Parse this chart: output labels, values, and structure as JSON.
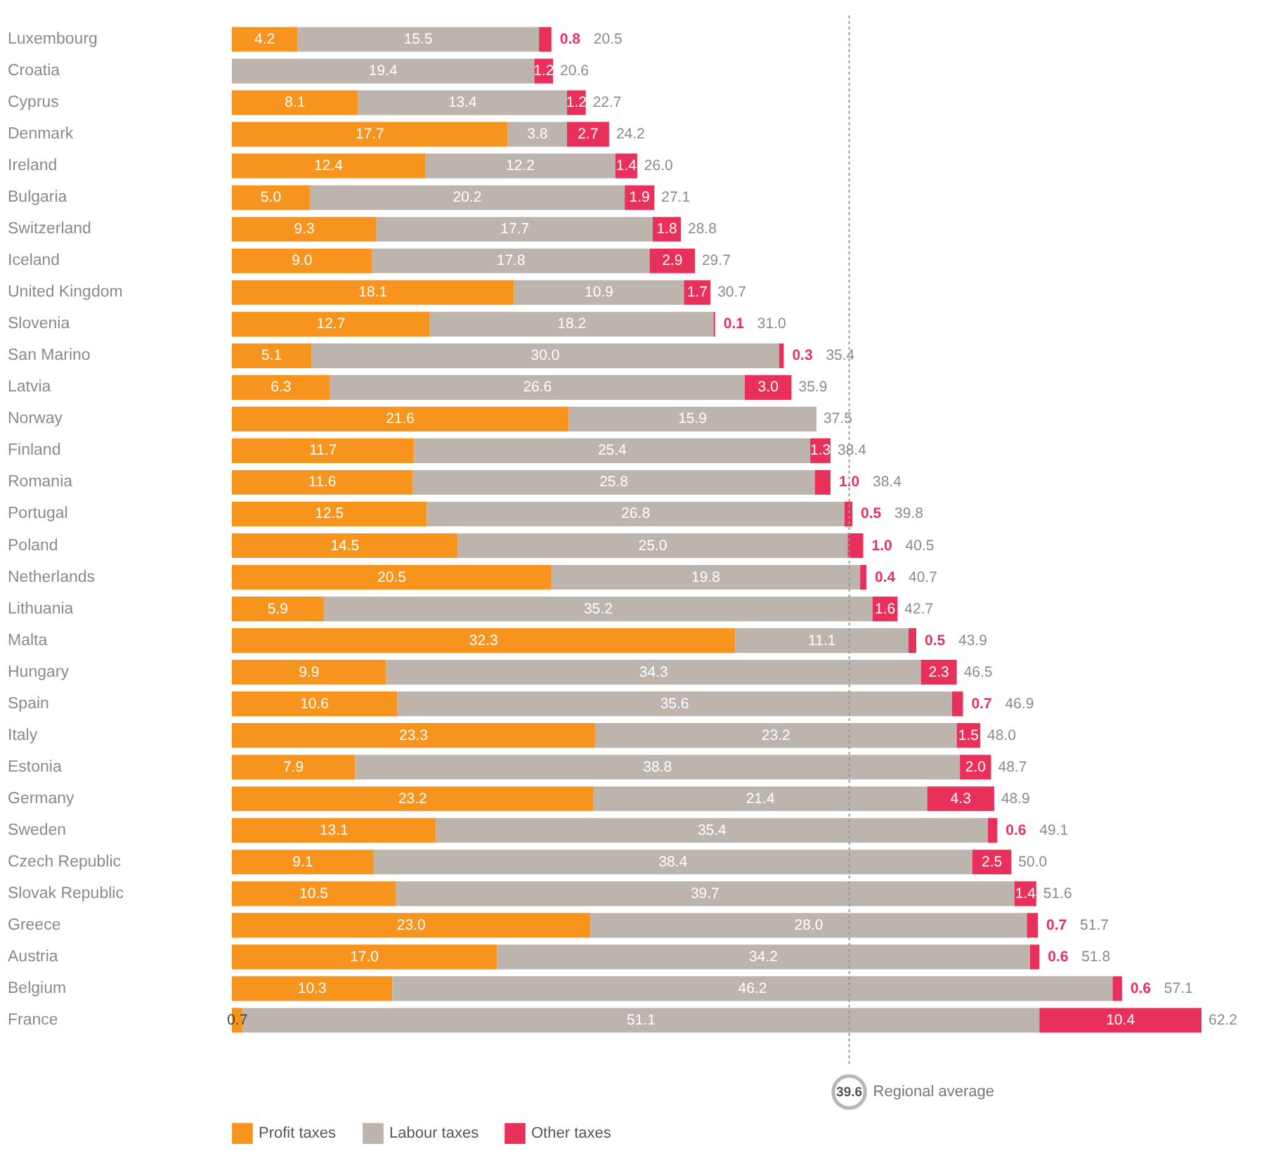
{
  "chart_data": {
    "type": "bar",
    "orientation": "horizontal",
    "stacked": true,
    "legend": "bottom left",
    "categories": [
      "Luxembourg",
      "Croatia",
      "Cyprus",
      "Denmark",
      "Ireland",
      "Bulgaria",
      "Switzerland",
      "Iceland",
      "United Kingdom",
      "Slovenia",
      "San Marino",
      "Latvia",
      "Norway",
      "Finland",
      "Romania",
      "Portugal",
      "Poland",
      "Netherlands",
      "Lithuania",
      "Malta",
      "Hungary",
      "Spain",
      "Italy",
      "Estonia",
      "Germany",
      "Sweden",
      "Czech Republic",
      "Slovak Republic",
      "Greece",
      "Austria",
      "Belgium",
      "France"
    ],
    "series": [
      {
        "name": "Profit taxes",
        "color": "#f7941d",
        "values": [
          4.2,
          null,
          8.1,
          17.7,
          12.4,
          5.0,
          9.3,
          9.0,
          18.1,
          12.7,
          5.1,
          6.3,
          21.6,
          11.7,
          11.6,
          12.5,
          14.5,
          20.5,
          5.9,
          32.3,
          9.9,
          10.6,
          23.3,
          7.9,
          23.2,
          13.1,
          9.1,
          10.5,
          23.0,
          17.0,
          10.3,
          0.7
        ],
        "value_labels": [
          "4.2",
          null,
          "8.1",
          "17.7",
          "12.4",
          "5.0",
          "9.3",
          "9.0",
          "18.1",
          "12.7",
          "5.1",
          "6.3",
          "21.6",
          "11.7",
          "11.6",
          "12.5",
          "14.5",
          "20.5",
          "5.9",
          "32.3",
          "9.9",
          "10.6",
          "23.3",
          "7.9",
          "23.2",
          "13.1",
          "9.1",
          "10.5",
          "23.0",
          "17.0",
          "10.3",
          "0.7"
        ]
      },
      {
        "name": "Labour taxes",
        "color": "#bdb4ae",
        "values": [
          15.5,
          19.4,
          13.4,
          3.8,
          12.2,
          20.2,
          17.7,
          17.8,
          10.9,
          18.2,
          30.0,
          26.6,
          15.9,
          25.4,
          25.8,
          26.8,
          25.0,
          19.8,
          35.2,
          11.1,
          34.3,
          35.6,
          23.2,
          38.8,
          21.4,
          35.4,
          38.4,
          39.7,
          28.0,
          34.2,
          46.2,
          51.1
        ],
        "value_labels": [
          "15.5",
          "19.4",
          "13.4",
          "3.8",
          "12.2",
          "20.2",
          "17.7",
          "17.8",
          "10.9",
          "18.2",
          "30.0",
          "26.6",
          "15.9",
          "25.4",
          "25.8",
          "26.8",
          "25.0",
          "19.8",
          "35.2",
          "11.1",
          "34.3",
          "35.6",
          "23.2",
          "38.8",
          "21.4",
          "35.4",
          "38.4",
          "39.7",
          "28.0",
          "34.2",
          "46.2",
          "51.1"
        ]
      },
      {
        "name": "Other taxes",
        "color": "#e8305a",
        "values": [
          0.8,
          1.2,
          1.2,
          2.7,
          1.4,
          1.9,
          1.8,
          2.9,
          1.7,
          0.1,
          0.3,
          3.0,
          null,
          1.3,
          1.0,
          0.5,
          1.0,
          0.4,
          1.6,
          0.5,
          2.3,
          0.7,
          1.5,
          2.0,
          4.3,
          0.6,
          2.5,
          1.4,
          0.7,
          0.6,
          0.6,
          10.4
        ],
        "value_labels": [
          "0.8",
          "1.2",
          "1.2",
          "2.7",
          "1.4",
          "1.9",
          "1.8",
          "2.9",
          "1.7",
          "0.1",
          "0.3",
          "3.0",
          null,
          "1.3",
          "1.0",
          "0.5",
          "1.0",
          "0.4",
          "1.6",
          "0.5",
          "2.3",
          "0.7",
          "1.5",
          "2.0",
          "4.3",
          "0.6",
          "2.5",
          "1.4",
          "0.7",
          "0.6",
          "0.6",
          "10.4"
        ]
      }
    ],
    "totals": [
      "20.5",
      "20.6",
      "22.7",
      "24.2",
      "26.0",
      "27.1",
      "28.8",
      "29.7",
      "30.7",
      "31.0",
      "35.4",
      "35.9",
      "37.5",
      "38.4",
      "38.4",
      "39.8",
      "40.5",
      "40.7",
      "42.7",
      "43.9",
      "46.5",
      "46.9",
      "48.0",
      "48.7",
      "48.9",
      "49.1",
      "50.0",
      "51.6",
      "51.7",
      "51.8",
      "57.1",
      "62.2"
    ],
    "ref_lines": [
      {
        "axis": "x",
        "value": 39.6,
        "label": "Regional average",
        "color": "#999999",
        "line_style": "dotted"
      }
    ],
    "annotations": [
      "39.6"
    ]
  }
}
